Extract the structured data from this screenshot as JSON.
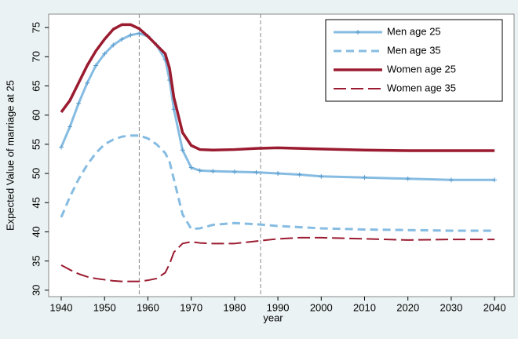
{
  "chart_data": {
    "type": "line",
    "x_label": "year",
    "y_label": "Expected Value of marriage at 25",
    "x": [
      1940,
      1942,
      1944,
      1946,
      1948,
      1950,
      1952,
      1954,
      1956,
      1958,
      1960,
      1962,
      1964,
      1965,
      1966,
      1968,
      1970,
      1972,
      1975,
      1980,
      1985,
      1990,
      1995,
      2000,
      2010,
      2020,
      2030,
      2040
    ],
    "series": [
      {
        "name": "Men age 25",
        "color": "#86bce2",
        "style": "solid",
        "marker": "plus",
        "values": [
          54.5,
          58,
          62,
          65.5,
          68.5,
          70.5,
          72,
          73,
          73.7,
          74,
          73.5,
          72,
          69.5,
          66,
          61,
          54,
          51,
          50.5,
          50.4,
          50.3,
          50.2,
          50,
          49.8,
          49.5,
          49.3,
          49.1,
          48.9,
          48.9
        ]
      },
      {
        "name": "Men age 35",
        "color": "#86bce2",
        "style": "dash",
        "values": [
          42.5,
          46,
          49,
          51.5,
          53.5,
          55,
          55.8,
          56.3,
          56.5,
          56.5,
          56,
          55,
          53.5,
          52,
          49,
          43,
          40.5,
          40.6,
          41.2,
          41.5,
          41.3,
          41,
          40.8,
          40.6,
          40.4,
          40.3,
          40.2,
          40.2
        ]
      },
      {
        "name": "Women age 25",
        "color": "#9b1b30",
        "style": "thick",
        "values": [
          60.5,
          62.5,
          65.5,
          68.5,
          71,
          73,
          74.7,
          75.5,
          75.5,
          74.8,
          73.5,
          72,
          70.5,
          68,
          63,
          57,
          54.8,
          54.1,
          54,
          54.1,
          54.3,
          54.4,
          54.3,
          54.2,
          54,
          53.9,
          53.9,
          53.9
        ]
      },
      {
        "name": "Women age 35",
        "color": "#9b1b30",
        "style": "longdash",
        "values": [
          34.3,
          33.5,
          32.8,
          32.3,
          32,
          31.8,
          31.6,
          31.5,
          31.5,
          31.5,
          31.7,
          32,
          33,
          34.5,
          36.5,
          38,
          38.3,
          38.1,
          38,
          38,
          38.4,
          38.8,
          39,
          39,
          38.8,
          38.6,
          38.7,
          38.7
        ]
      }
    ],
    "vlines": [
      1958,
      1986
    ],
    "xlim": [
      1937.1,
      2044.5
    ],
    "ylim": [
      28.9,
      77.3
    ],
    "xticks": [
      1940,
      1950,
      1960,
      1970,
      1980,
      1990,
      2000,
      2010,
      2020,
      2030,
      2040
    ],
    "yticks": [
      30,
      35,
      40,
      45,
      50,
      55,
      60,
      65,
      70,
      75
    ],
    "legend": "top-right"
  }
}
